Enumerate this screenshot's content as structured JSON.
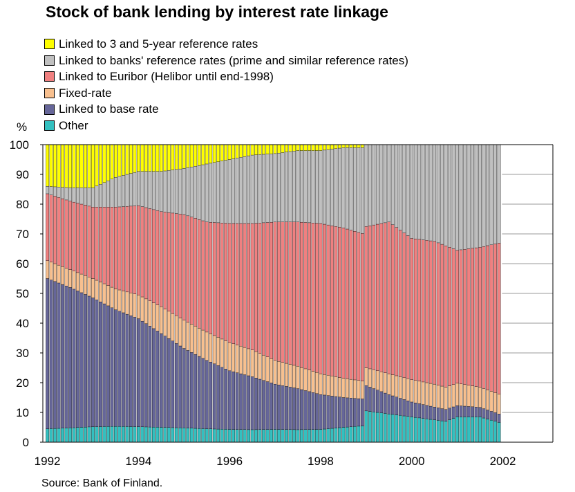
{
  "chart_data": {
    "type": "area",
    "title": "Stock of bank lending by interest rate linkage",
    "ylabel": "%",
    "ylim": [
      0,
      100
    ],
    "yticks": [
      0,
      10,
      20,
      30,
      40,
      50,
      60,
      70,
      80,
      90,
      100
    ],
    "xlim": [
      1991.9,
      2003.1
    ],
    "xticks": [
      "1992",
      "1994",
      "1996",
      "1998",
      "2000",
      "2002"
    ],
    "grid": true,
    "legend_position": "top-left",
    "source": "Source: Bank of Finland.",
    "x": [
      1992.0,
      1992.5,
      1993.0,
      1993.5,
      1994.0,
      1994.5,
      1995.0,
      1995.5,
      1996.0,
      1996.5,
      1997.0,
      1997.5,
      1998.0,
      1998.5,
      1998.95,
      1999.0,
      1999.5,
      2000.0,
      2000.5,
      2000.75,
      2001.0,
      2001.5,
      2001.95
    ],
    "series": [
      {
        "name": "Other",
        "color": "#33c0c0",
        "values": [
          4.5,
          4.8,
          5.2,
          5.3,
          5.2,
          5.0,
          4.8,
          4.5,
          4.3,
          4.2,
          4.3,
          4.2,
          4.3,
          5.0,
          5.5,
          10.5,
          9.5,
          8.5,
          7.5,
          7.0,
          8.5,
          8.5,
          6.5
        ]
      },
      {
        "name": "Linked to base rate",
        "color": "#666699",
        "values": [
          50.5,
          47.2,
          43.3,
          39.2,
          36.3,
          31.5,
          26.7,
          23.0,
          19.7,
          17.8,
          15.2,
          13.8,
          11.7,
          10.0,
          9.0,
          8.5,
          6.5,
          5.0,
          4.3,
          4.0,
          3.8,
          3.2,
          2.8
        ]
      },
      {
        "name": "Fixed-rate",
        "color": "#f8c08f",
        "values": [
          6.0,
          6.0,
          6.5,
          7.0,
          8.0,
          9.0,
          9.5,
          9.5,
          9.5,
          9.0,
          8.0,
          7.5,
          7.0,
          6.5,
          6.0,
          6.0,
          7.0,
          7.5,
          7.7,
          7.5,
          7.5,
          6.8,
          6.7
        ]
      },
      {
        "name": "Linked to Euribor (Helibor until end-1998)",
        "color": "#f08080",
        "values": [
          22.5,
          23.0,
          24.0,
          27.5,
          30.0,
          32.0,
          35.5,
          37.0,
          40.0,
          42.5,
          46.5,
          48.5,
          50.5,
          50.5,
          49.5,
          47.5,
          51.0,
          47.5,
          48.0,
          47.5,
          44.7,
          47.0,
          51.0
        ]
      },
      {
        "name": "Linked to banks' reference rates (prime and similar reference rates)",
        "color": "#c0c0c0",
        "values": [
          2.5,
          4.5,
          6.5,
          10.0,
          11.5,
          13.5,
          15.5,
          19.5,
          21.5,
          23.0,
          23.0,
          24.0,
          24.5,
          27.0,
          29.0,
          27.5,
          26.0,
          31.5,
          32.5,
          34.0,
          35.5,
          34.5,
          33.0
        ]
      },
      {
        "name": "Linked to 3 and 5-year reference rates",
        "color": "#ffff00",
        "values": [
          14.0,
          14.5,
          14.5,
          11.0,
          9.0,
          9.0,
          8.0,
          6.5,
          5.0,
          3.5,
          3.0,
          2.0,
          2.0,
          1.0,
          1.0,
          0,
          0,
          0,
          0,
          0,
          0,
          0,
          0
        ]
      }
    ]
  }
}
